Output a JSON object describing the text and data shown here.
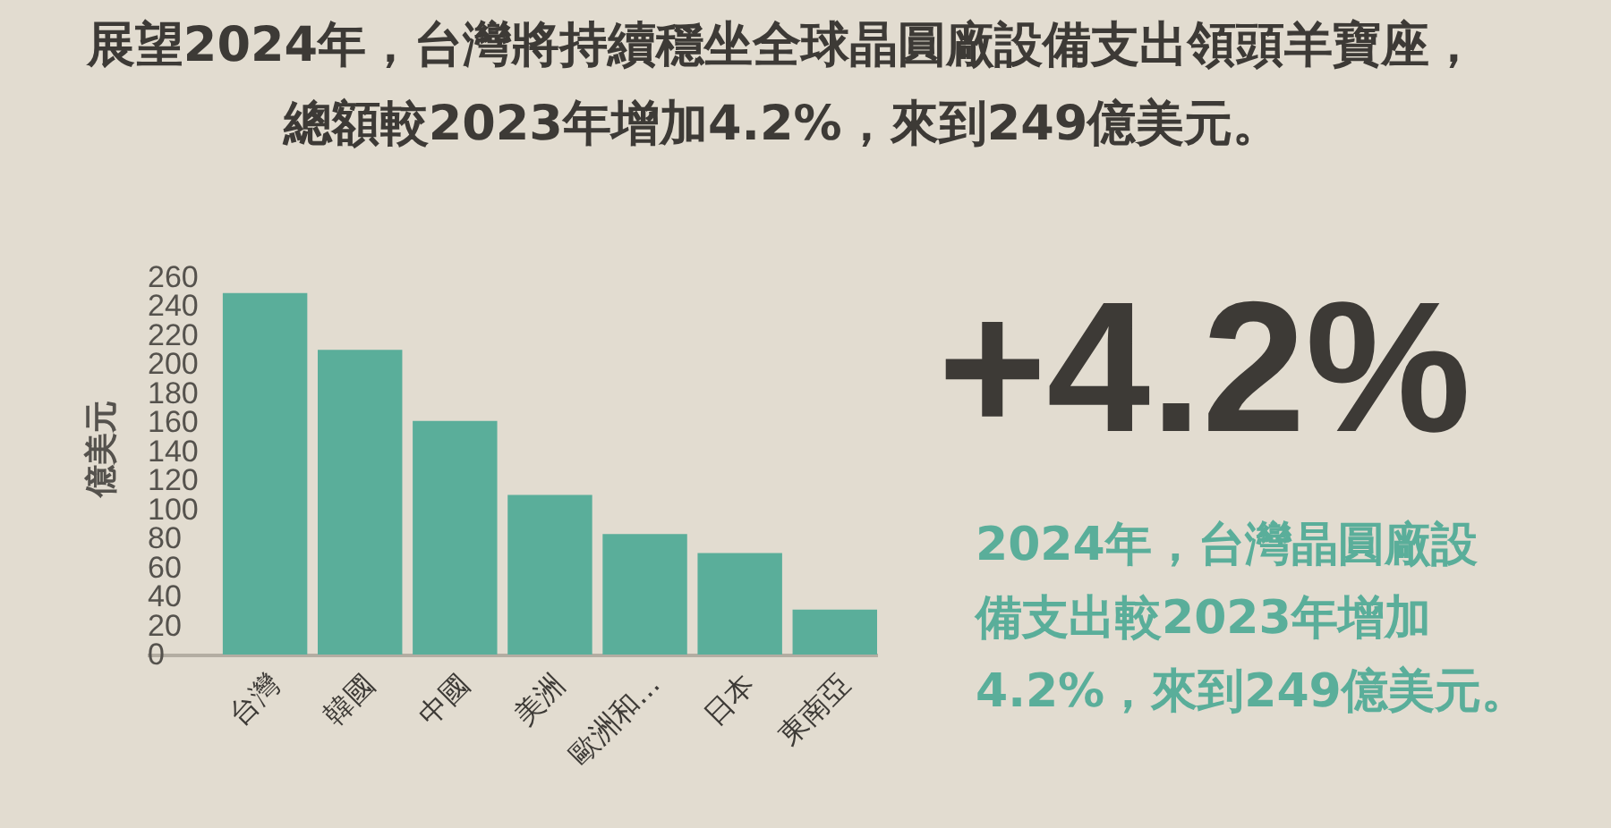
{
  "chart_data": {
    "type": "bar",
    "title": "展望2024年，台灣將持續穩坐全球晶圓廠設備支出領頭羊寶座，總額較2023年增加4.2%，來到249億美元。",
    "ylabel": "億美元",
    "categories": [
      "台灣",
      "韓國",
      "中國",
      "美洲",
      "歐洲和...",
      "日本",
      "東南亞"
    ],
    "values": [
      249,
      210,
      161,
      110,
      83,
      70,
      31
    ],
    "color": "#5aae9a",
    "ylim": [
      0,
      260
    ],
    "yticks": [
      0,
      20,
      40,
      60,
      80,
      100,
      120,
      140,
      160,
      180,
      200,
      220,
      240,
      260
    ],
    "grid": false,
    "annotations": [
      "+4.2%",
      "2024年，台灣晶圓廠設備支出較2023年增加4.2%，來到249億美元。"
    ]
  }
}
